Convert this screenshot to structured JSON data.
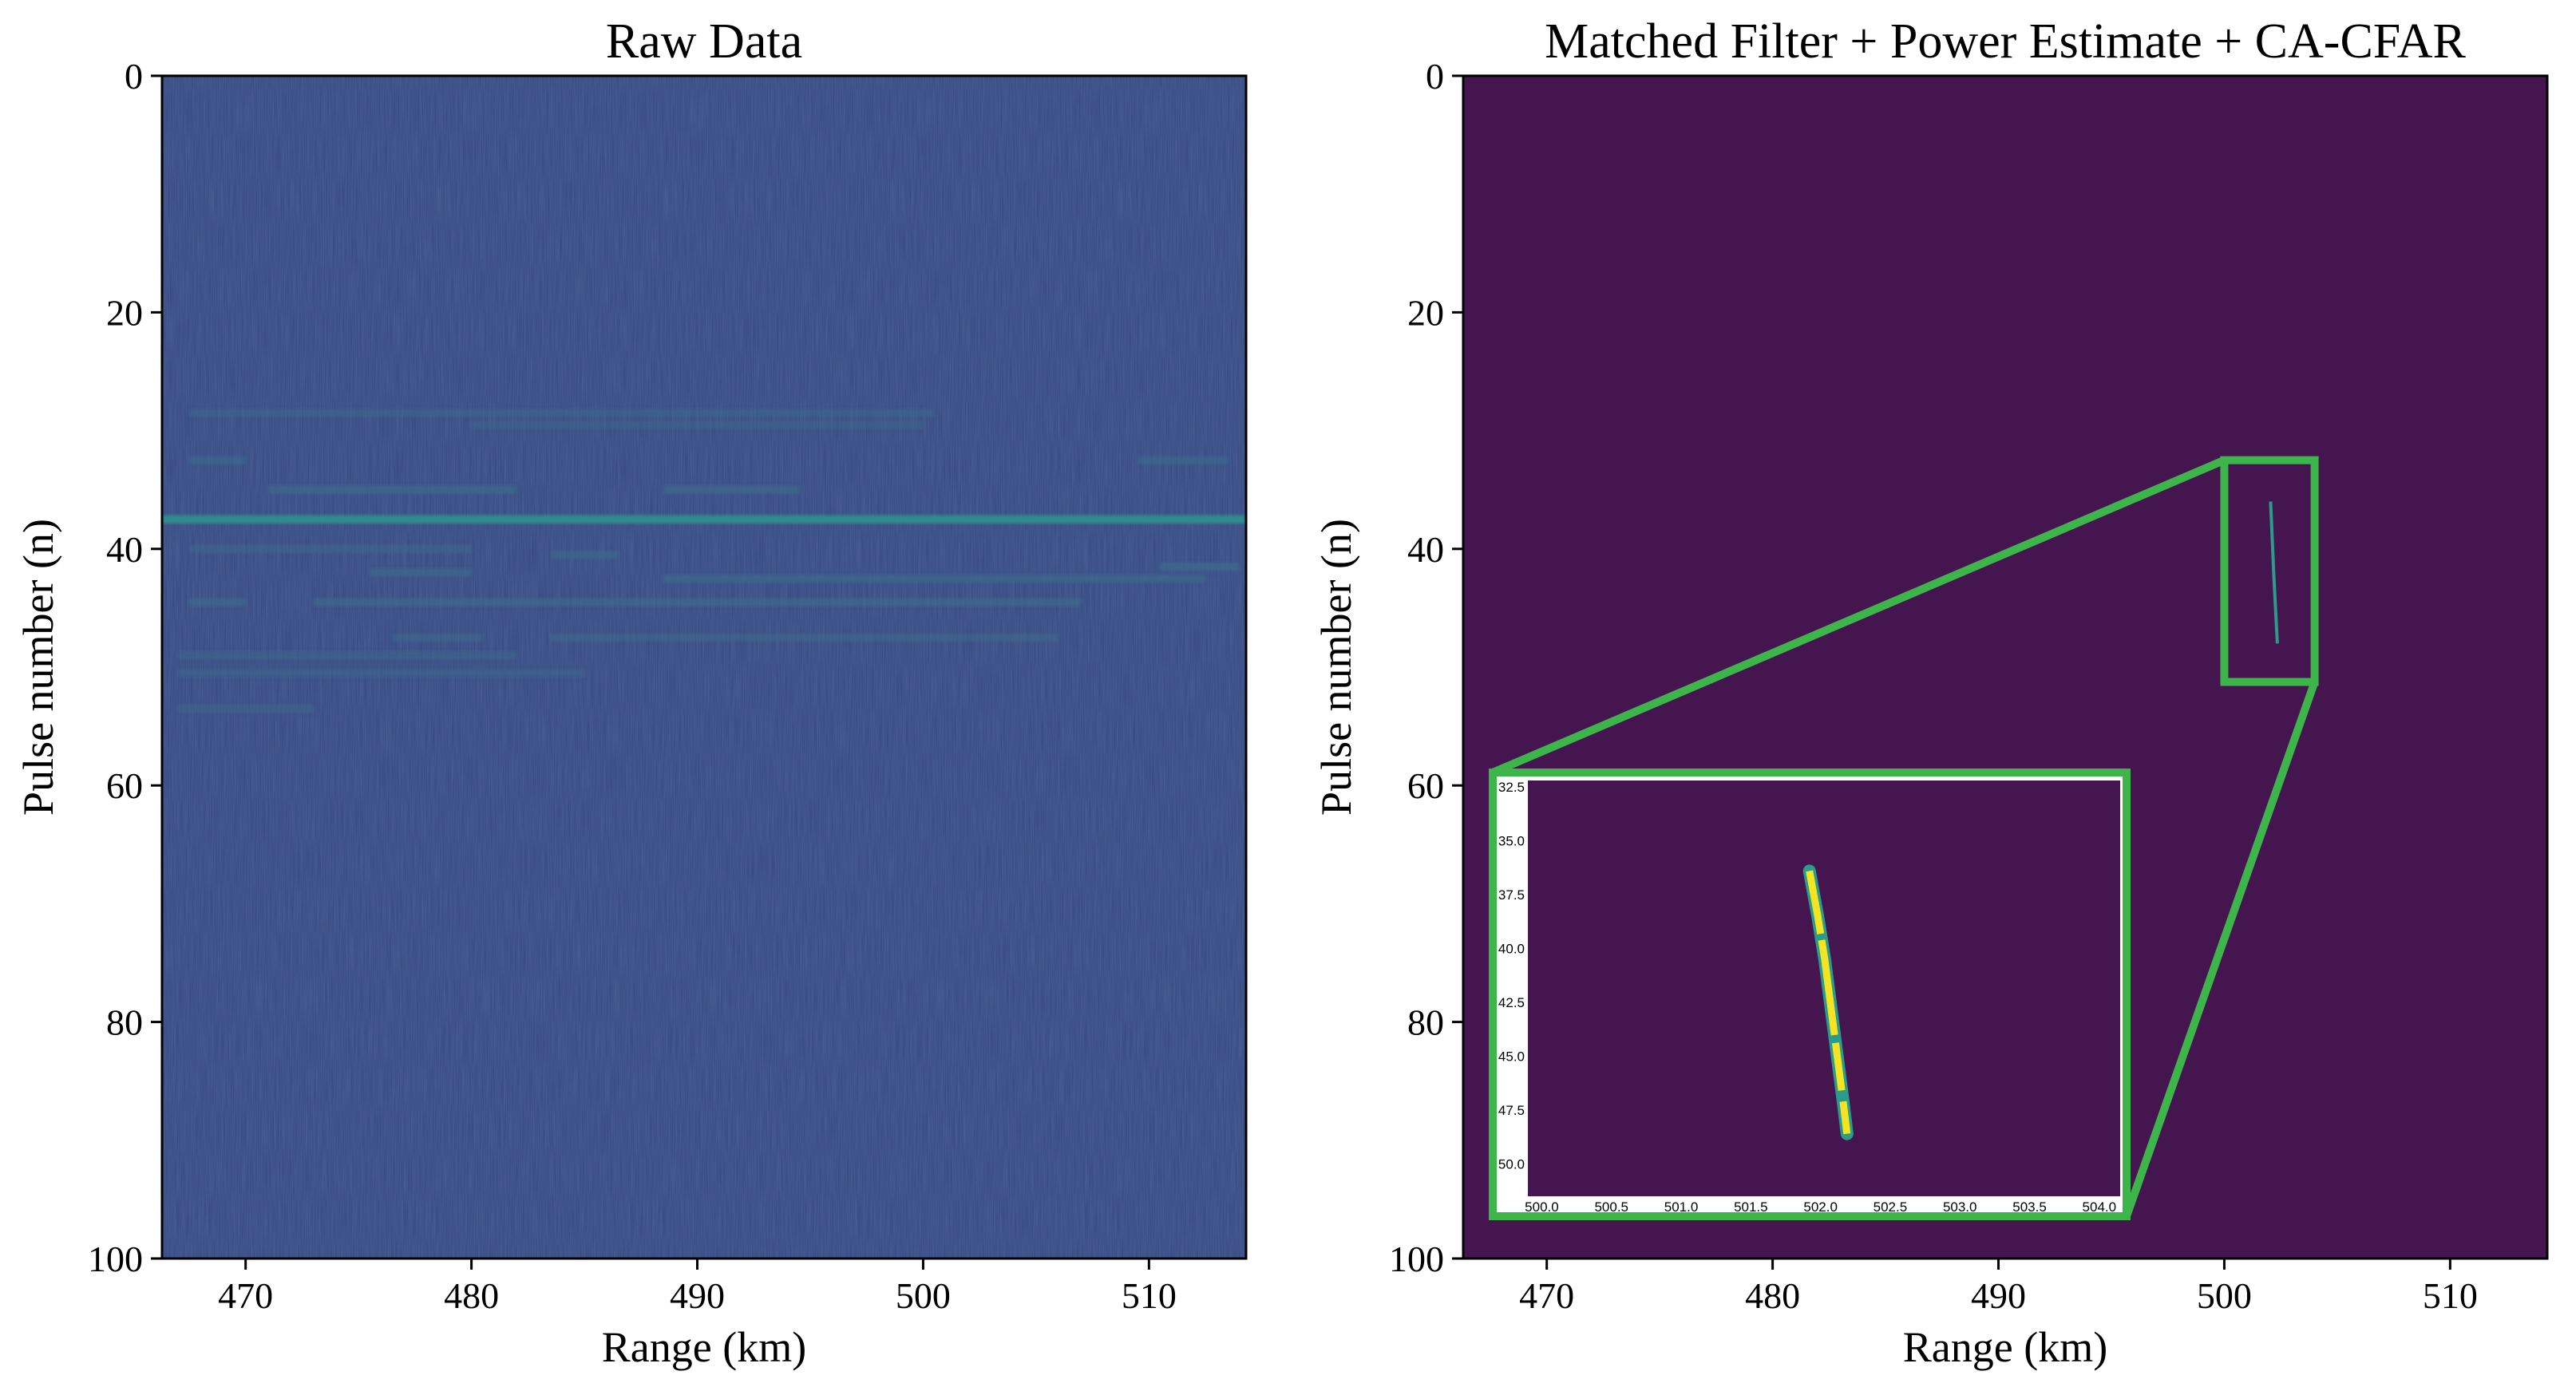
{
  "colors": {
    "raw_background": "#33477f",
    "raw_streak": "#2f8f8c",
    "raw_streak_faint": "#3d6a8c",
    "cfar_background": "#44154f",
    "detection_yellow": "#f4e524",
    "detection_teal": "#2b9c8c",
    "zoom_box": "#3db54a",
    "axis": "#000000"
  },
  "chart_data": [
    {
      "type": "heatmap",
      "title": "Raw Data",
      "xlabel": "Range (km)",
      "ylabel": "Pulse number (n)",
      "xlim": [
        466.3,
        514.3
      ],
      "ylim": [
        100,
        0
      ],
      "xticks": [
        470,
        480,
        490,
        500,
        510
      ],
      "yticks": [
        0,
        20,
        40,
        60,
        80,
        100
      ],
      "streaks": [
        {
          "pulse": 28.5,
          "x0": 467.5,
          "x1": 500.5,
          "strength": 0.3
        },
        {
          "pulse": 29.5,
          "x0": 480.0,
          "x1": 500.0,
          "strength": 0.3
        },
        {
          "pulse": 32.5,
          "x0": 467.5,
          "x1": 470.0,
          "strength": 0.45
        },
        {
          "pulse": 32.5,
          "x0": 509.5,
          "x1": 513.5,
          "strength": 0.45
        },
        {
          "pulse": 35.0,
          "x0": 471.0,
          "x1": 482.0,
          "strength": 0.6
        },
        {
          "pulse": 35.0,
          "x0": 488.5,
          "x1": 494.5,
          "strength": 0.55
        },
        {
          "pulse": 37.5,
          "x0": 466.3,
          "x1": 514.3,
          "strength": 1.0
        },
        {
          "pulse": 40.0,
          "x0": 467.5,
          "x1": 480.0,
          "strength": 0.35
        },
        {
          "pulse": 40.5,
          "x0": 483.5,
          "x1": 486.5,
          "strength": 0.45
        },
        {
          "pulse": 41.5,
          "x0": 510.5,
          "x1": 514.0,
          "strength": 0.7
        },
        {
          "pulse": 42.0,
          "x0": 475.5,
          "x1": 480.0,
          "strength": 0.45
        },
        {
          "pulse": 42.5,
          "x0": 488.5,
          "x1": 512.5,
          "strength": 0.55
        },
        {
          "pulse": 44.5,
          "x0": 467.5,
          "x1": 470.0,
          "strength": 0.55
        },
        {
          "pulse": 44.5,
          "x0": 473.0,
          "x1": 507.0,
          "strength": 0.55
        },
        {
          "pulse": 47.5,
          "x0": 476.5,
          "x1": 480.5,
          "strength": 0.4
        },
        {
          "pulse": 47.5,
          "x0": 483.5,
          "x1": 506.0,
          "strength": 0.4
        },
        {
          "pulse": 49.0,
          "x0": 467.0,
          "x1": 482.0,
          "strength": 0.3
        },
        {
          "pulse": 50.5,
          "x0": 467.0,
          "x1": 485.0,
          "strength": 0.25
        },
        {
          "pulse": 53.5,
          "x0": 467.0,
          "x1": 473.0,
          "strength": 0.2
        }
      ]
    },
    {
      "type": "heatmap",
      "title": "Matched Filter + Power Estimate + CA-CFAR",
      "xlabel": "Range (km)",
      "ylabel": "Pulse number (n)",
      "xlim": [
        466.3,
        514.3
      ],
      "ylim": [
        100,
        0
      ],
      "xticks": [
        470,
        480,
        490,
        500,
        510
      ],
      "yticks": [
        0,
        20,
        40,
        60,
        80,
        100
      ],
      "detection": [
        {
          "pulse": 36.0,
          "range": 502.05
        },
        {
          "pulse": 42.5,
          "range": 502.2
        },
        {
          "pulse": 48.0,
          "range": 502.35
        }
      ],
      "zoom_region": {
        "x0": 500.0,
        "x1": 504.0,
        "y0": 32.5,
        "y1": 51.25
      },
      "inset": {
        "xlim": [
          499.9,
          504.15
        ],
        "ylim": [
          51.5,
          32.2
        ],
        "xticks": [
          "500.0",
          "500.5",
          "501.0",
          "501.5",
          "502.0",
          "502.5",
          "503.0",
          "503.5",
          "504.0"
        ],
        "yticks": [
          "32.5",
          "35.0",
          "37.5",
          "40.0",
          "42.5",
          "45.0",
          "47.5",
          "50.0"
        ],
        "detection": [
          {
            "pulse": 36.4,
            "range": 501.92
          },
          {
            "pulse": 38.5,
            "range": 501.98
          },
          {
            "pulse": 40.5,
            "range": 502.03
          },
          {
            "pulse": 42.0,
            "range": 502.06
          },
          {
            "pulse": 43.0,
            "range": 502.08
          },
          {
            "pulse": 45.0,
            "range": 502.12
          },
          {
            "pulse": 47.0,
            "range": 502.16
          },
          {
            "pulse": 48.6,
            "range": 502.19
          }
        ]
      }
    }
  ]
}
